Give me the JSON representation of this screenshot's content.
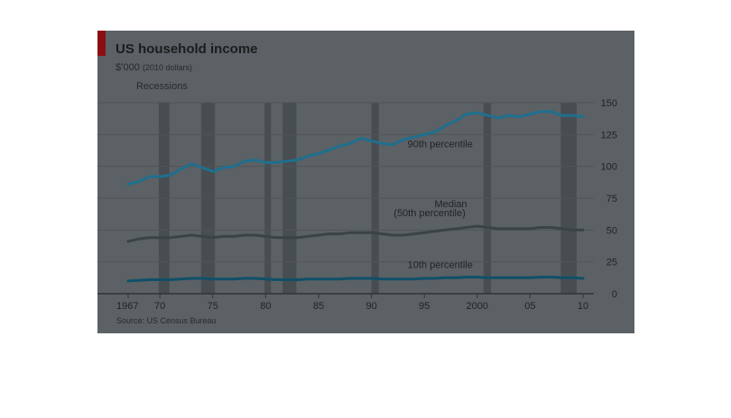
{
  "chart_data": {
    "type": "line",
    "title": "US household income",
    "unit": "$’000",
    "unit_note": "(2010 dollars)",
    "legend": [
      "Recessions"
    ],
    "source": "Source: US Census Bureau",
    "ylim": [
      0,
      150
    ],
    "yticks": [
      "0",
      "25",
      "50",
      "75",
      "100",
      "125",
      "150"
    ],
    "xlim": [
      1967,
      2010
    ],
    "xticks": [
      {
        "x": 1967,
        "label": "1967"
      },
      {
        "x": 1970,
        "label": "70"
      },
      {
        "x": 1975,
        "label": "75"
      },
      {
        "x": 1980,
        "label": "80"
      },
      {
        "x": 1985,
        "label": "85"
      },
      {
        "x": 1990,
        "label": "90"
      },
      {
        "x": 1995,
        "label": "95"
      },
      {
        "x": 2000,
        "label": "2000"
      },
      {
        "x": 2005,
        "label": "05"
      },
      {
        "x": 2010,
        "label": "10"
      }
    ],
    "recessions": [
      [
        1969.9,
        1970.9
      ],
      [
        1973.9,
        1975.2
      ],
      [
        1979.9,
        1980.5
      ],
      [
        1981.6,
        1982.9
      ],
      [
        1990.0,
        1990.7
      ],
      [
        2000.6,
        2001.3
      ],
      [
        2007.9,
        2009.4
      ]
    ],
    "series": [
      {
        "name": "90th percentile",
        "color": "#1f6f8e",
        "x": [
          1967,
          1968,
          1969,
          1970,
          1971,
          1972,
          1973,
          1974,
          1975,
          1976,
          1977,
          1978,
          1979,
          1980,
          1981,
          1982,
          1983,
          1984,
          1985,
          1986,
          1987,
          1988,
          1989,
          1990,
          1991,
          1992,
          1993,
          1994,
          1995,
          1996,
          1997,
          1998,
          1999,
          2000,
          2001,
          2002,
          2003,
          2004,
          2005,
          2006,
          2007,
          2008,
          2009,
          2010
        ],
        "values": [
          86,
          88,
          92,
          92,
          93,
          98,
          102,
          99,
          96,
          99,
          100,
          104,
          105,
          103,
          103,
          104,
          105,
          108,
          110,
          113,
          116,
          118,
          122,
          120,
          118,
          117,
          121,
          123,
          125,
          127,
          132,
          136,
          141,
          142,
          140,
          138,
          140,
          139,
          141,
          143,
          143,
          140,
          140,
          139
        ]
      },
      {
        "name": "Median\n(50th percentile)",
        "color": "#3b4347",
        "x": [
          1967,
          1968,
          1969,
          1970,
          1971,
          1972,
          1973,
          1974,
          1975,
          1976,
          1977,
          1978,
          1979,
          1980,
          1981,
          1982,
          1983,
          1984,
          1985,
          1986,
          1987,
          1988,
          1989,
          1990,
          1991,
          1992,
          1993,
          1994,
          1995,
          1996,
          1997,
          1998,
          1999,
          2000,
          2001,
          2002,
          2003,
          2004,
          2005,
          2006,
          2007,
          2008,
          2009,
          2010
        ],
        "values": [
          41,
          43,
          44,
          44,
          44,
          45,
          46,
          45,
          44,
          45,
          45,
          46,
          46,
          45,
          44,
          44,
          44,
          45,
          46,
          47,
          47,
          48,
          48,
          48,
          47,
          46,
          46,
          47,
          48,
          49,
          50,
          51,
          52,
          53,
          52,
          51,
          51,
          51,
          51,
          52,
          52,
          51,
          50,
          50
        ]
      },
      {
        "name": "10th percentile",
        "color": "#0f5068",
        "x": [
          1967,
          1968,
          1969,
          1970,
          1971,
          1972,
          1973,
          1974,
          1975,
          1976,
          1977,
          1978,
          1979,
          1980,
          1981,
          1982,
          1983,
          1984,
          1985,
          1986,
          1987,
          1988,
          1989,
          1990,
          1991,
          1992,
          1993,
          1994,
          1995,
          1996,
          1997,
          1998,
          1999,
          2000,
          2001,
          2002,
          2003,
          2004,
          2005,
          2006,
          2007,
          2008,
          2009,
          2010
        ],
        "values": [
          10,
          10.5,
          11,
          11,
          11,
          11.5,
          12,
          12,
          11.5,
          11.5,
          11.5,
          12,
          12,
          11.5,
          11,
          11,
          11,
          11.5,
          11.5,
          11.5,
          11.5,
          12,
          12,
          12,
          11.5,
          11.5,
          11.5,
          11.5,
          12,
          12,
          12.5,
          12.5,
          13,
          13,
          12.5,
          12.5,
          12.5,
          12.5,
          12.5,
          13,
          13,
          12.5,
          12.5,
          12
        ]
      }
    ],
    "series_labels": [
      {
        "series": 0,
        "text": "90th percentile",
        "x": 1996.5,
        "y": 115
      },
      {
        "series": 1,
        "text": "Median",
        "x": 1997.5,
        "y": 68
      },
      {
        "series": 1,
        "text": "(50th percentile)",
        "x": 1995.5,
        "y": 61
      },
      {
        "series": 2,
        "text": "10th percentile",
        "x": 1996.5,
        "y": 20
      }
    ]
  }
}
